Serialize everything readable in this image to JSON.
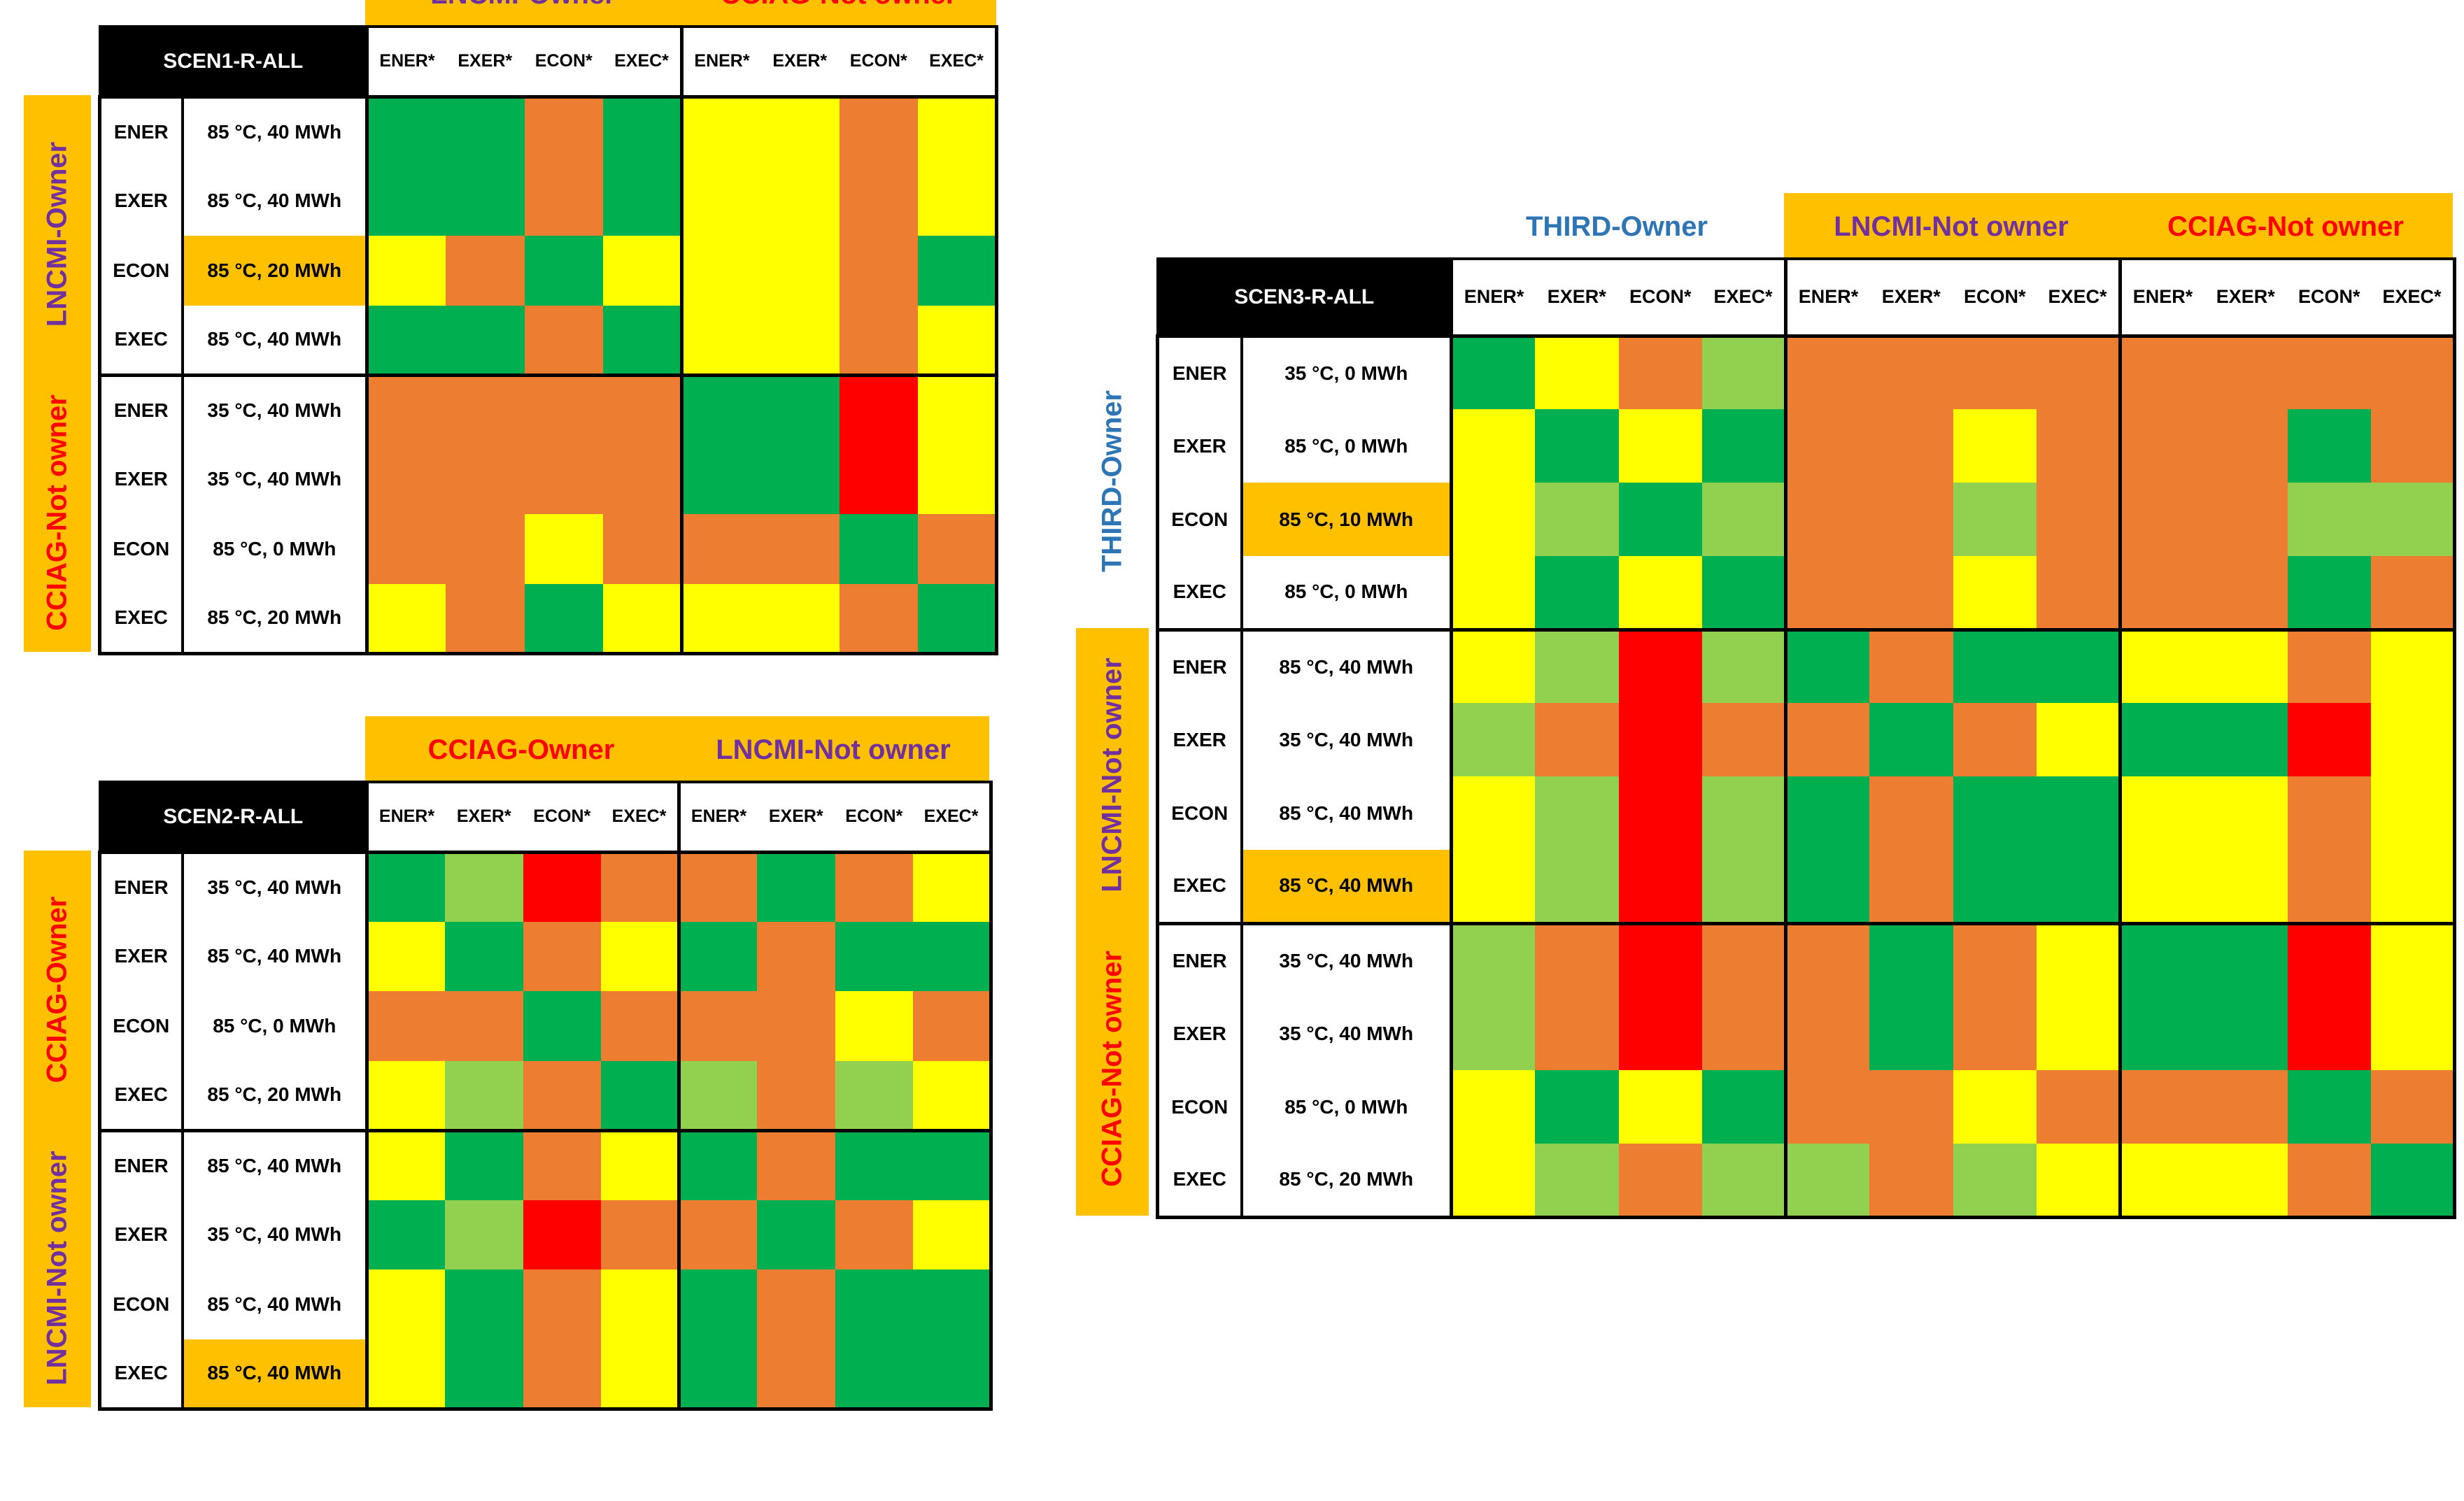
{
  "colors": {
    "dark_green": "#00b050",
    "light_green": "#92d050",
    "yellow": "#ffff00",
    "orange": "#ed7d31",
    "red": "#ff0000",
    "banner": "#ffc000",
    "purple": "#7030a0",
    "text_red": "#ff0000",
    "blue": "#2e75b6"
  },
  "chart_data": [
    {
      "type": "heatmap",
      "title": "SCEN1-R-ALL",
      "column_groups": [
        {
          "label": "LNCMI-Owner",
          "color": "purple",
          "columns": [
            "ENER*",
            "EXER*",
            "ECON*",
            "EXEC*"
          ]
        },
        {
          "label": "CCIAG-Not owner",
          "color": "red",
          "columns": [
            "ENER*",
            "EXER*",
            "ECON*",
            "EXEC*"
          ]
        }
      ],
      "row_groups": [
        {
          "label": "LNCMI-Owner",
          "color": "purple",
          "rows": [
            {
              "label": "ENER",
              "param": "85 °C, 40 MWh",
              "highlight": false,
              "cells": [
                "G",
                "G",
                "O",
                "G",
                "Y",
                "Y",
                "O",
                "Y"
              ]
            },
            {
              "label": "EXER",
              "param": "85 °C, 40 MWh",
              "highlight": false,
              "cells": [
                "G",
                "G",
                "O",
                "G",
                "Y",
                "Y",
                "O",
                "Y"
              ]
            },
            {
              "label": "ECON",
              "param": "85 °C, 20 MWh",
              "highlight": true,
              "cells": [
                "Y",
                "O",
                "G",
                "Y",
                "Y",
                "Y",
                "O",
                "G"
              ]
            },
            {
              "label": "EXEC",
              "param": "85 °C, 40 MWh",
              "highlight": false,
              "cells": [
                "G",
                "G",
                "O",
                "G",
                "Y",
                "Y",
                "O",
                "Y"
              ]
            }
          ]
        },
        {
          "label": "CCIAG-Not owner",
          "color": "red",
          "rows": [
            {
              "label": "ENER",
              "param": "35 °C, 40 MWh",
              "highlight": false,
              "cells": [
                "O",
                "O",
                "O",
                "O",
                "G",
                "G",
                "R",
                "Y"
              ]
            },
            {
              "label": "EXER",
              "param": "35 °C, 40 MWh",
              "highlight": false,
              "cells": [
                "O",
                "O",
                "O",
                "O",
                "G",
                "G",
                "R",
                "Y"
              ]
            },
            {
              "label": "ECON",
              "param": "85 °C, 0 MWh",
              "highlight": false,
              "cells": [
                "O",
                "O",
                "Y",
                "O",
                "O",
                "O",
                "G",
                "O"
              ]
            },
            {
              "label": "EXEC",
              "param": "85 °C, 20 MWh",
              "highlight": false,
              "cells": [
                "Y",
                "O",
                "G",
                "Y",
                "Y",
                "Y",
                "O",
                "G"
              ]
            }
          ]
        }
      ]
    },
    {
      "type": "heatmap",
      "title": "SCEN2-R-ALL",
      "column_groups": [
        {
          "label": "CCIAG-Owner",
          "color": "red",
          "columns": [
            "ENER*",
            "EXER*",
            "ECON*",
            "EXEC*"
          ]
        },
        {
          "label": "LNCMI-Not owner",
          "color": "purple",
          "columns": [
            "ENER*",
            "EXER*",
            "ECON*",
            "EXEC*"
          ]
        }
      ],
      "row_groups": [
        {
          "label": "CCIAG-Owner",
          "color": "red",
          "rows": [
            {
              "label": "ENER",
              "param": "35 °C, 40 MWh",
              "highlight": false,
              "cells": [
                "G",
                "L",
                "R",
                "O",
                "O",
                "G",
                "O",
                "Y"
              ]
            },
            {
              "label": "EXER",
              "param": "85 °C, 40 MWh",
              "highlight": false,
              "cells": [
                "Y",
                "G",
                "O",
                "Y",
                "G",
                "O",
                "G",
                "G"
              ]
            },
            {
              "label": "ECON",
              "param": "85 °C, 0 MWh",
              "highlight": false,
              "cells": [
                "O",
                "O",
                "G",
                "O",
                "O",
                "O",
                "Y",
                "O"
              ]
            },
            {
              "label": "EXEC",
              "param": "85 °C, 20 MWh",
              "highlight": false,
              "cells": [
                "Y",
                "L",
                "O",
                "G",
                "L",
                "O",
                "L",
                "Y"
              ]
            }
          ]
        },
        {
          "label": "LNCMI-Not owner",
          "color": "purple",
          "rows": [
            {
              "label": "ENER",
              "param": "85 °C, 40 MWh",
              "highlight": false,
              "cells": [
                "Y",
                "G",
                "O",
                "Y",
                "G",
                "O",
                "G",
                "G"
              ]
            },
            {
              "label": "EXER",
              "param": "35 °C, 40 MWh",
              "highlight": false,
              "cells": [
                "G",
                "L",
                "R",
                "O",
                "O",
                "G",
                "O",
                "Y"
              ]
            },
            {
              "label": "ECON",
              "param": "85 °C, 40 MWh",
              "highlight": false,
              "cells": [
                "Y",
                "G",
                "O",
                "Y",
                "G",
                "O",
                "G",
                "G"
              ]
            },
            {
              "label": "EXEC",
              "param": "85 °C, 40 MWh",
              "highlight": true,
              "cells": [
                "Y",
                "G",
                "O",
                "Y",
                "G",
                "O",
                "G",
                "G"
              ]
            }
          ]
        }
      ]
    },
    {
      "type": "heatmap",
      "title": "SCEN3-R-ALL",
      "column_groups": [
        {
          "label": "THIRD-Owner",
          "color": "blue",
          "columns": [
            "ENER*",
            "EXER*",
            "ECON*",
            "EXEC*"
          ]
        },
        {
          "label": "LNCMI-Not owner",
          "color": "purple",
          "columns": [
            "ENER*",
            "EXER*",
            "ECON*",
            "EXEC*"
          ]
        },
        {
          "label": "CCIAG-Not owner",
          "color": "red",
          "columns": [
            "ENER*",
            "EXER*",
            "ECON*",
            "EXEC*"
          ]
        }
      ],
      "row_groups": [
        {
          "label": "THIRD-Owner",
          "color": "blue",
          "rows": [
            {
              "label": "ENER",
              "param": "35 °C, 0 MWh",
              "highlight": false,
              "cells": [
                "G",
                "Y",
                "O",
                "L",
                "O",
                "O",
                "O",
                "O",
                "O",
                "O",
                "O",
                "O"
              ]
            },
            {
              "label": "EXER",
              "param": "85 °C, 0 MWh",
              "highlight": false,
              "cells": [
                "Y",
                "G",
                "Y",
                "G",
                "O",
                "O",
                "Y",
                "O",
                "O",
                "O",
                "G",
                "O"
              ]
            },
            {
              "label": "ECON",
              "param": "85 °C, 10 MWh",
              "highlight": true,
              "cells": [
                "Y",
                "L",
                "G",
                "L",
                "O",
                "O",
                "L",
                "O",
                "O",
                "O",
                "L",
                "L"
              ]
            },
            {
              "label": "EXEC",
              "param": "85 °C, 0 MWh",
              "highlight": false,
              "cells": [
                "Y",
                "G",
                "Y",
                "G",
                "O",
                "O",
                "Y",
                "O",
                "O",
                "O",
                "G",
                "O"
              ]
            }
          ]
        },
        {
          "label": "LNCMI-Not owner",
          "color": "purple",
          "rows": [
            {
              "label": "ENER",
              "param": "85 °C, 40 MWh",
              "highlight": false,
              "cells": [
                "Y",
                "L",
                "R",
                "L",
                "G",
                "O",
                "G",
                "G",
                "Y",
                "Y",
                "O",
                "Y"
              ]
            },
            {
              "label": "EXER",
              "param": "35 °C, 40 MWh",
              "highlight": false,
              "cells": [
                "L",
                "O",
                "R",
                "O",
                "O",
                "G",
                "O",
                "Y",
                "G",
                "G",
                "R",
                "Y"
              ]
            },
            {
              "label": "ECON",
              "param": "85 °C, 40 MWh",
              "highlight": false,
              "cells": [
                "Y",
                "L",
                "R",
                "L",
                "G",
                "O",
                "G",
                "G",
                "Y",
                "Y",
                "O",
                "Y"
              ]
            },
            {
              "label": "EXEC",
              "param": "85 °C, 40 MWh",
              "highlight": true,
              "cells": [
                "Y",
                "L",
                "R",
                "L",
                "G",
                "O",
                "G",
                "G",
                "Y",
                "Y",
                "O",
                "Y"
              ]
            }
          ]
        },
        {
          "label": "CCIAG-Not owner",
          "color": "red",
          "rows": [
            {
              "label": "ENER",
              "param": "35 °C, 40 MWh",
              "highlight": false,
              "cells": [
                "L",
                "O",
                "R",
                "O",
                "O",
                "G",
                "O",
                "Y",
                "G",
                "G",
                "R",
                "Y"
              ]
            },
            {
              "label": "EXER",
              "param": "35 °C, 40 MWh",
              "highlight": false,
              "cells": [
                "L",
                "O",
                "R",
                "O",
                "O",
                "G",
                "O",
                "Y",
                "G",
                "G",
                "R",
                "Y"
              ]
            },
            {
              "label": "ECON",
              "param": "85 °C, 0 MWh",
              "highlight": false,
              "cells": [
                "Y",
                "G",
                "Y",
                "G",
                "O",
                "O",
                "Y",
                "O",
                "O",
                "O",
                "G",
                "O"
              ]
            },
            {
              "label": "EXEC",
              "param": "85 °C, 20 MWh",
              "highlight": false,
              "cells": [
                "Y",
                "L",
                "O",
                "L",
                "L",
                "O",
                "L",
                "Y",
                "Y",
                "Y",
                "O",
                "G"
              ]
            }
          ]
        }
      ]
    }
  ]
}
